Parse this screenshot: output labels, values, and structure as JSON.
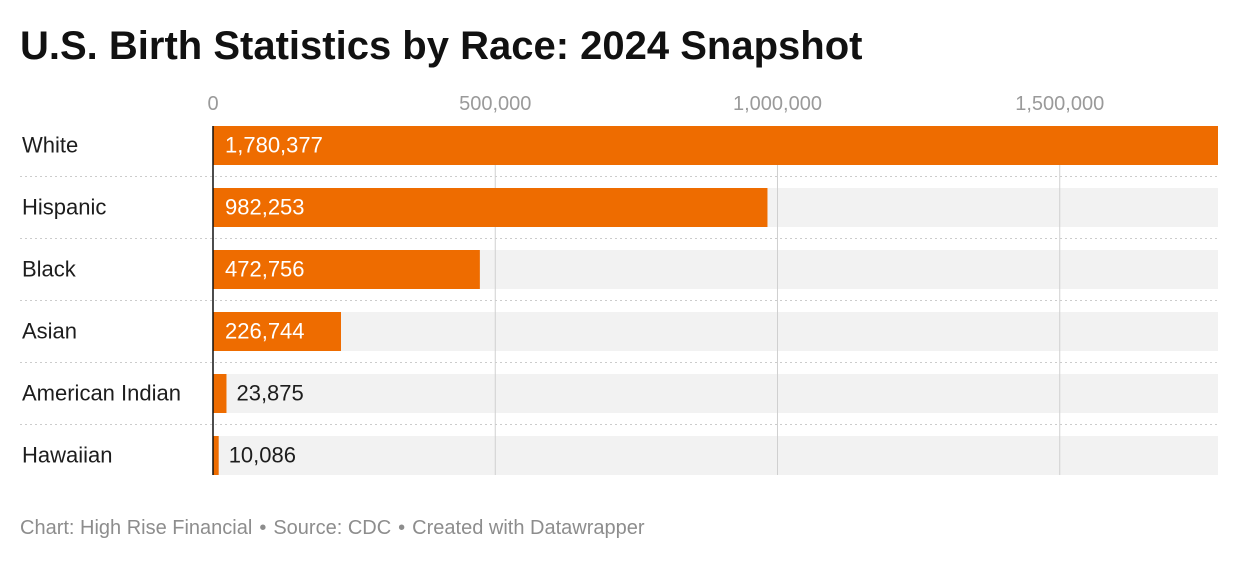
{
  "title": "U.S. Birth Statistics by Race: 2024 Snapshot",
  "footer": {
    "chart_credit": "Chart: High Rise Financial",
    "separator": "•",
    "source": "Source: CDC",
    "created": "Created with Datawrapper"
  },
  "colors": {
    "bar": "#ee6c00",
    "track": "#f2f2f2",
    "grid": "#d0d0d0",
    "row_divider": "#cccccc",
    "axis": "#111111",
    "tick_text": "#9a9a9a",
    "label_text": "#1d1d1d",
    "value_inside": "#ffffff",
    "value_outside": "#1d1d1d"
  },
  "chart_data": {
    "type": "bar",
    "orientation": "horizontal",
    "title": "U.S. Birth Statistics by Race: 2024 Snapshot",
    "xlabel": "",
    "ylabel": "",
    "xlim": [
      0,
      1780377
    ],
    "xticks": [
      0,
      500000,
      1000000,
      1500000
    ],
    "xtick_labels": [
      "0",
      "500,000",
      "1,000,000",
      "1,500,000"
    ],
    "grid": true,
    "categories": [
      "White",
      "Hispanic",
      "Black",
      "Asian",
      "American Indian",
      "Hawaiian"
    ],
    "values": [
      1780377,
      982253,
      472756,
      226744,
      23875,
      10086
    ],
    "value_labels": [
      "1,780,377",
      "982,253",
      "472,756",
      "226,744",
      "23,875",
      "10,086"
    ]
  }
}
